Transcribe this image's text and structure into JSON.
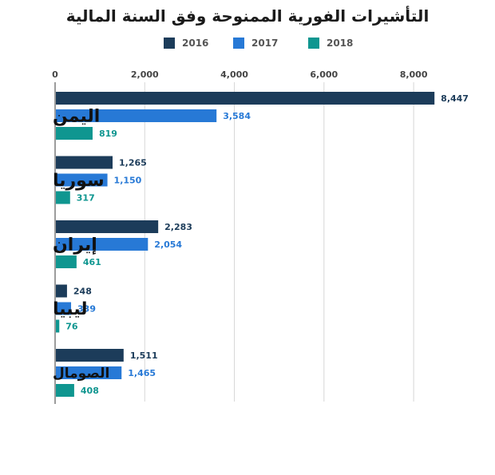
{
  "chart_data": {
    "type": "bar",
    "orientation": "horizontal",
    "title": "التأشيرات الفورية الممنوحة وفق السنة المالية",
    "categories": [
      "اليمن",
      "سوريا",
      "إيران",
      "ليبيا",
      "الصومال"
    ],
    "series": [
      {
        "name": "2016",
        "color": "#1c3c5a",
        "values": [
          8447,
          1265,
          2283,
          248,
          1511
        ]
      },
      {
        "name": "2017",
        "color": "#2779d6",
        "values": [
          3584,
          1150,
          2054,
          339,
          1465
        ]
      },
      {
        "name": "2018",
        "color": "#0f9690",
        "values": [
          819,
          317,
          461,
          76,
          408
        ]
      }
    ],
    "xlim": [
      0,
      8800
    ],
    "xticks": [
      0,
      2000,
      4000,
      6000,
      8000
    ],
    "xtick_labels": [
      "0",
      "2,000",
      "4,000",
      "6,000",
      "8,000"
    ],
    "legend_position": "top",
    "grid": true
  }
}
